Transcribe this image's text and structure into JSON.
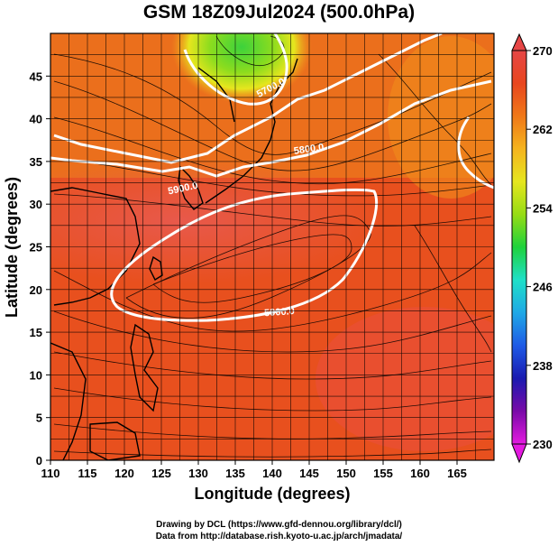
{
  "title": "GSM 18Z09Jul2024 (500.0hPa)",
  "x_axis": {
    "label": "Longitude (degrees)",
    "range": [
      110,
      170
    ],
    "ticks": [
      "110",
      "115",
      "120",
      "125",
      "130",
      "135",
      "140",
      "145",
      "150",
      "155",
      "160",
      "165"
    ],
    "tick_values": [
      110,
      115,
      120,
      125,
      130,
      135,
      140,
      145,
      150,
      155,
      160,
      165
    ]
  },
  "y_axis": {
    "label": "Latitude  (degrees)",
    "range": [
      0,
      50
    ],
    "ticks": [
      "0",
      "5",
      "10",
      "15",
      "20",
      "25",
      "30",
      "35",
      "40",
      "45"
    ],
    "tick_values": [
      0,
      5,
      10,
      15,
      20,
      25,
      30,
      35,
      40,
      45
    ]
  },
  "colorbar": {
    "range": [
      230,
      270
    ],
    "labels": [
      "270",
      "262",
      "254",
      "246",
      "238",
      "230"
    ],
    "label_values": [
      270,
      262,
      254,
      246,
      238,
      230
    ],
    "colors": [
      "#e41ae0",
      "#7a0aa8",
      "#1a1ab0",
      "#1e5ae6",
      "#1ea8e6",
      "#1ee0c8",
      "#1ed23c",
      "#96dc14",
      "#e6e61e",
      "#f5b41e",
      "#f07818",
      "#e8461e",
      "#e64646"
    ]
  },
  "contours": [
    {
      "label": "5700.0"
    },
    {
      "label": "5800.0"
    },
    {
      "label": "5900.0"
    },
    {
      "label": "5900.0"
    }
  ],
  "credits": [
    "Drawing by DCL (https://www.gfd-dennou.org/library/dcl/)",
    "Data from http://database.rish.kyoto-u.ac.jp/arch/jmadata/"
  ],
  "colors": {
    "background_field": "#e8501e",
    "warm_band": "#e65a4a",
    "cold_core": "#5ad23c",
    "contour": "#ffffff",
    "grid": "#000000"
  }
}
